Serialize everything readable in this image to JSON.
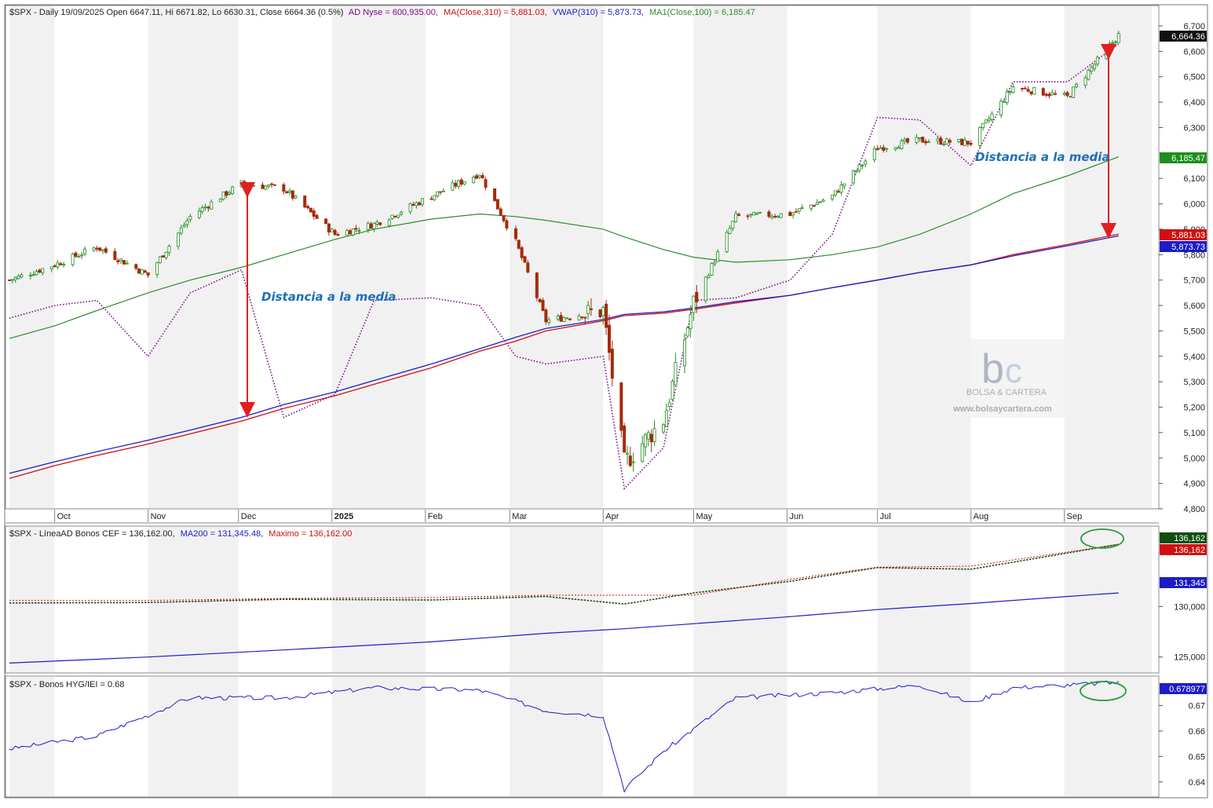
{
  "colors": {
    "up": "#1e8e1e",
    "down": "#a52a0a",
    "ma310": "#d01010",
    "vwap": "#1c1cc8",
    "ma100": "#2e8b2e",
    "ad": "#7a0a8a",
    "arrow": "#e02020",
    "annotation": "#1f6fb5",
    "circle": "#2a9a3a",
    "cef_line": "#1a4d1a",
    "cef_max": "#d01010",
    "hyg": "#1c1cc8"
  },
  "watermark": {
    "name": "BOLSA & CARTERA",
    "url": "www.bolsaycartera.com"
  },
  "charts": {
    "price": {
      "header": {
        "lead": "$SPX - Daily 19/09/2025 Open 6647.11, Hi 6671.82, Lo 6630.31, Close 6664.36 (0.5%)",
        "ad": "AD Nyse = 600,935.00,",
        "ma": "MA(Close,310) = 5,881.03,",
        "vwap": "VWAP(310) = 5,873.73,",
        "ma100": "MA1(Close,100) = 6,185.47"
      },
      "y_ticks": [
        "6,700",
        "6,600",
        "6,500",
        "6,400",
        "6,300",
        "6,100",
        "6,000",
        "5,900",
        "5,800",
        "5,700",
        "5,600",
        "5,500",
        "5,400",
        "5,300",
        "5,200",
        "5,100",
        "5,000",
        "4,900",
        "4,800"
      ],
      "x_months": [
        "Oct",
        "Nov",
        "Dec",
        "2025",
        "Feb",
        "Mar",
        "Apr",
        "May",
        "Jun",
        "Jul",
        "Aug",
        "Sep"
      ],
      "annotations": [
        "Distancia a la media",
        "Distancia a la media"
      ],
      "tags": {
        "close": "6,664.36",
        "ma100": "6,185.47",
        "ma310": "5,881.03",
        "vwap": "5,873.73"
      }
    },
    "cef": {
      "header": {
        "lead": "$SPX - LíneaAD Bonos CEF = 136,162.00,",
        "ma": "MA200 = 131,345.48,",
        "max": "Maximo = 136,162.00"
      },
      "y_ticks": [
        "130,000",
        "125,000"
      ],
      "tags": {
        "line": "136,162",
        "max": "136,162",
        "ma": "131,345"
      }
    },
    "hyg": {
      "header": {
        "lead": "$SPX - Bonos HYG/IEI  = 0.68"
      },
      "y_ticks": [
        "0.67",
        "0.66",
        "0.65",
        "0.64"
      ],
      "tags": {
        "last": "0.678977"
      }
    }
  },
  "chart_data": [
    {
      "type": "line",
      "title": "$SPX - Daily 19/09/2025",
      "x": [
        "2024-09-16",
        "2024-10-01",
        "2024-10-15",
        "2024-11-01",
        "2024-11-15",
        "2024-12-02",
        "2024-12-16",
        "2025-01-02",
        "2025-01-15",
        "2025-02-03",
        "2025-02-19",
        "2025-03-03",
        "2025-03-13",
        "2025-04-01",
        "2025-04-08",
        "2025-04-21",
        "2025-05-01",
        "2025-05-15",
        "2025-06-02",
        "2025-06-16",
        "2025-07-01",
        "2025-07-15",
        "2025-08-01",
        "2025-08-15",
        "2025-09-02",
        "2025-09-19"
      ],
      "series": [
        {
          "name": "$SPX",
          "values": [
            5700,
            5760,
            5830,
            5720,
            5950,
            6080,
            6060,
            5880,
            5920,
            6030,
            6120,
            5850,
            5540,
            5580,
            4980,
            5150,
            5610,
            5950,
            5960,
            6030,
            6220,
            6250,
            6240,
            6460,
            6420,
            6664
          ]
        },
        {
          "name": "MA(Close,310)",
          "values": [
            4920,
            4970,
            5010,
            5055,
            5095,
            5145,
            5195,
            5245,
            5290,
            5355,
            5420,
            5460,
            5500,
            5540,
            5560,
            5570,
            5585,
            5610,
            5640,
            5670,
            5700,
            5730,
            5760,
            5800,
            5840,
            5881
          ]
        },
        {
          "name": "VWAP(310)",
          "values": [
            4940,
            4985,
            5025,
            5070,
            5110,
            5160,
            5210,
            5260,
            5305,
            5370,
            5430,
            5475,
            5510,
            5545,
            5565,
            5575,
            5590,
            5615,
            5640,
            5670,
            5700,
            5730,
            5760,
            5795,
            5835,
            5874
          ]
        },
        {
          "name": "MA1(Close,100)",
          "values": [
            5470,
            5520,
            5580,
            5650,
            5700,
            5750,
            5800,
            5860,
            5900,
            5940,
            5960,
            5950,
            5935,
            5900,
            5870,
            5820,
            5790,
            5770,
            5780,
            5800,
            5830,
            5880,
            5960,
            6040,
            6110,
            6185
          ]
        },
        {
          "name": "AD Nyse",
          "values": [
            5550,
            5600,
            5620,
            5400,
            5650,
            5740,
            5160,
            5250,
            5620,
            5630,
            5600,
            5400,
            5370,
            5400,
            4880,
            5040,
            5620,
            5630,
            5700,
            5880,
            6340,
            6330,
            6150,
            6480,
            6480,
            6630
          ]
        }
      ],
      "ylim": [
        4800,
        6700
      ]
    },
    {
      "type": "line",
      "title": "$SPX - LíneaAD Bonos CEF",
      "x": [
        "2024-09-16",
        "2024-11-01",
        "2024-12-16",
        "2025-02-03",
        "2025-03-13",
        "2025-04-08",
        "2025-05-01",
        "2025-06-02",
        "2025-07-01",
        "2025-08-01",
        "2025-09-02",
        "2025-09-19"
      ],
      "series": [
        {
          "name": "LíneaAD Bonos CEF",
          "values": [
            130350,
            130400,
            130720,
            130650,
            131000,
            130250,
            131350,
            132500,
            133850,
            133700,
            135300,
            136162
          ]
        },
        {
          "name": "MA200",
          "values": [
            124400,
            125000,
            125700,
            126500,
            127350,
            127800,
            128300,
            129000,
            129700,
            130300,
            131000,
            131345
          ]
        },
        {
          "name": "Maximo",
          "values": [
            130600,
            130600,
            130800,
            130900,
            131120,
            131120,
            131120,
            132700,
            133900,
            134000,
            135400,
            136162
          ]
        }
      ],
      "ylim": [
        123500,
        137500
      ]
    },
    {
      "type": "line",
      "title": "$SPX - Bonos HYG/IEI",
      "x": [
        "2024-09-16",
        "2024-10-15",
        "2024-11-15",
        "2024-12-16",
        "2025-01-15",
        "2025-02-19",
        "2025-03-13",
        "2025-04-01",
        "2025-04-08",
        "2025-04-21",
        "2025-05-15",
        "2025-06-16",
        "2025-07-15",
        "2025-08-01",
        "2025-08-15",
        "2025-09-19"
      ],
      "series": [
        {
          "name": "Bonos HYG/IEI",
          "values": [
            0.653,
            0.658,
            0.673,
            0.673,
            0.677,
            0.676,
            0.668,
            0.666,
            0.637,
            0.652,
            0.673,
            0.675,
            0.678,
            0.671,
            0.677,
            0.679
          ]
        }
      ],
      "ylim": [
        0.635,
        0.68
      ]
    }
  ]
}
